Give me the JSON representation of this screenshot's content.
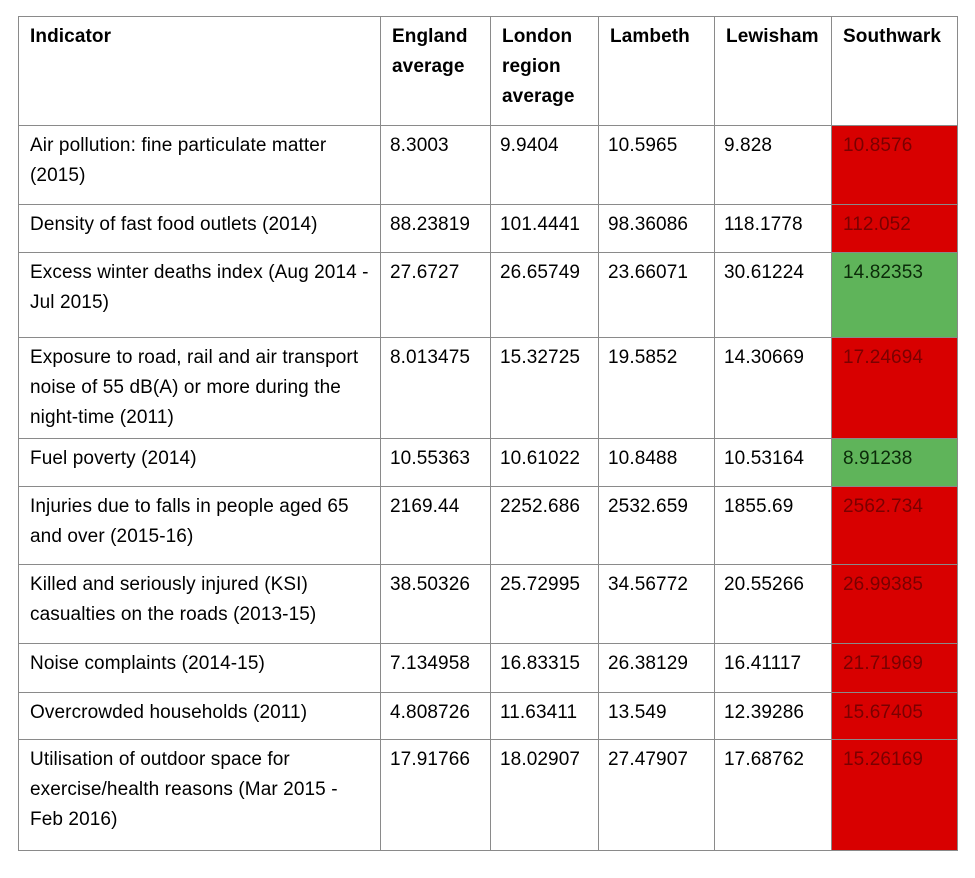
{
  "colors": {
    "worse": "#d80000",
    "better": "#5fb45a"
  },
  "columns": [
    "Indicator",
    "England average",
    "London region average",
    "Lambeth",
    "Lewisham",
    "Southwark"
  ],
  "rows": [
    {
      "indicator": "Air pollution: fine particulate matter (2015)",
      "england": "8.3003",
      "london": "9.9404",
      "lambeth": "10.5965",
      "lewisham": "9.828",
      "southwark": "10.8576",
      "southwark_status": "red"
    },
    {
      "indicator": "Density of fast food outlets (2014)",
      "england": "88.23819",
      "london": "101.4441",
      "lambeth": "98.36086",
      "lewisham": "118.1778",
      "southwark": "112.052",
      "southwark_status": "red"
    },
    {
      "indicator": "Excess winter deaths index (Aug 2014 - Jul 2015)",
      "england": "27.6727",
      "london": "26.65749",
      "lambeth": "23.66071",
      "lewisham": "30.61224",
      "southwark": "14.82353",
      "southwark_status": "green"
    },
    {
      "indicator": "Exposure to road, rail and air transport noise of 55 dB(A) or more during the night-time (2011)",
      "england": "8.013475",
      "london": "15.32725",
      "lambeth": "19.5852",
      "lewisham": "14.30669",
      "southwark": "17.24694",
      "southwark_status": "red"
    },
    {
      "indicator": "Fuel poverty (2014)",
      "england": "10.55363",
      "london": "10.61022",
      "lambeth": "10.8488",
      "lewisham": "10.53164",
      "southwark": "8.91238",
      "southwark_status": "green"
    },
    {
      "indicator": "Injuries due to falls in people aged 65 and over (2015-16)",
      "england": "2169.44",
      "london": "2252.686",
      "lambeth": "2532.659",
      "lewisham": "1855.69",
      "southwark": "2562.734",
      "southwark_status": "red"
    },
    {
      "indicator": "Killed and seriously injured (KSI) casualties on the roads (2013-15)",
      "england": "38.50326",
      "london": "25.72995",
      "lambeth": "34.56772",
      "lewisham": "20.55266",
      "southwark": "26.99385",
      "southwark_status": "red"
    },
    {
      "indicator": "Noise complaints (2014-15)",
      "england": "7.134958",
      "london": "16.83315",
      "lambeth": "26.38129",
      "lewisham": "16.41117",
      "southwark": "21.71969",
      "southwark_status": "red"
    },
    {
      "indicator": "Overcrowded households (2011)",
      "england": "4.808726",
      "london": "11.63411",
      "lambeth": "13.549",
      "lewisham": "12.39286",
      "southwark": "15.67405",
      "southwark_status": "red"
    },
    {
      "indicator": "Utilisation of outdoor space for exercise/health reasons (Mar 2015 - Feb 2016)",
      "england": "17.91766",
      "london": "18.02907",
      "lambeth": "27.47907",
      "lewisham": "17.68762",
      "southwark": "15.26169",
      "southwark_status": "red"
    }
  ]
}
